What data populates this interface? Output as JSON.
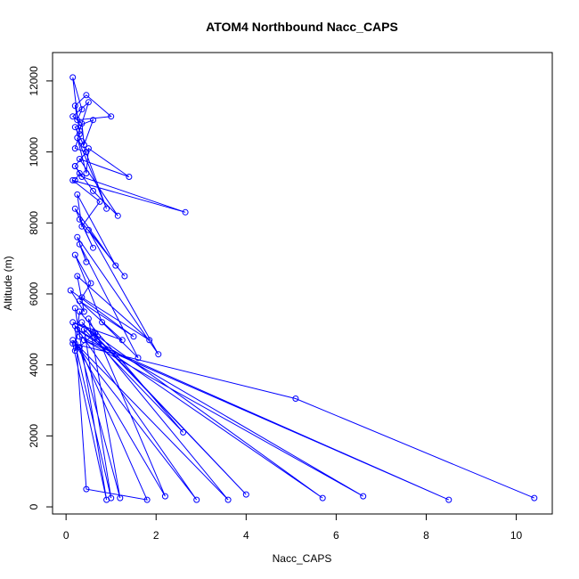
{
  "chart_data": {
    "type": "line",
    "title": "ATOM4 Northbound Nacc_CAPS",
    "xlabel": "Nacc_CAPS",
    "ylabel": "Altitude (m)",
    "xlim": [
      -0.3,
      10.8
    ],
    "ylim": [
      -200,
      12800
    ],
    "xticks": [
      0,
      2,
      4,
      6,
      8,
      10
    ],
    "xtick_labels": [
      "0",
      "2",
      "4",
      "6",
      "8",
      "10"
    ],
    "yticks": [
      0,
      2000,
      4000,
      6000,
      8000,
      10000,
      12000
    ],
    "ytick_labels": [
      "0",
      "2000",
      "4000",
      "6000",
      "8000",
      "10000",
      "12000"
    ],
    "grid": false,
    "legend": "none",
    "series": [
      {
        "color": "#0000ff",
        "marker": "open-circle",
        "x": [
          10.4,
          5.1,
          0.15,
          0.9,
          0.2,
          0.3,
          8.5,
          0.4,
          6.6,
          0.25,
          5.7,
          0.6,
          4.0,
          0.35,
          3.6,
          0.15,
          2.9,
          0.2,
          0.45,
          1.8,
          0.3,
          1.2,
          0.5,
          0.7,
          2.2,
          0.2,
          1.0,
          0.4,
          2.6,
          0.3,
          0.2,
          0.65,
          0.15,
          1.25,
          0.3,
          1.5,
          0.1,
          0.4,
          0.25,
          1.85,
          0.35,
          0.55,
          0.2,
          0.8,
          1.6,
          0.3,
          0.45,
          0.25,
          2.05,
          0.5,
          1.3,
          0.3,
          0.6,
          0.2,
          1.1,
          0.25,
          0.35,
          0.75,
          0.15,
          2.65,
          0.35,
          0.2,
          0.6,
          1.15,
          0.3,
          1.4,
          0.5,
          0.45,
          0.25,
          0.9,
          0.35,
          0.2,
          0.6,
          0.4,
          0.35,
          0.15,
          0.5,
          0.3,
          0.2,
          0.45,
          1.0,
          0.25,
          0.35,
          0.15,
          0.3,
          0.2,
          0.45,
          0.2,
          0.3,
          0.2
        ],
        "y": [
          250,
          3050,
          4600,
          200,
          5600,
          4800,
          200,
          4700,
          300,
          5000,
          250,
          4900,
          350,
          5200,
          200,
          4700,
          200,
          5100,
          500,
          200,
          4500,
          250,
          5300,
          4800,
          300,
          4600,
          250,
          5000,
          2100,
          5500,
          4400,
          4900,
          5200,
          4700,
          5800,
          4800,
          6100,
          5500,
          6500,
          4700,
          5900,
          6300,
          7100,
          5200,
          4200,
          7400,
          6900,
          7600,
          4300,
          7800,
          6500,
          8100,
          7300,
          8400,
          6800,
          8800,
          7900,
          8600,
          9200,
          8300,
          9300,
          9600,
          8900,
          8200,
          9800,
          9300,
          10100,
          9400,
          10400,
          8400,
          10300,
          10700,
          10900,
          10200,
          10800,
          11000,
          11400,
          10600,
          11300,
          11600,
          11000,
          10900,
          11200,
          12100,
          10500,
          10100,
          10000,
          9600,
          9400,
          9200
        ]
      }
    ]
  }
}
